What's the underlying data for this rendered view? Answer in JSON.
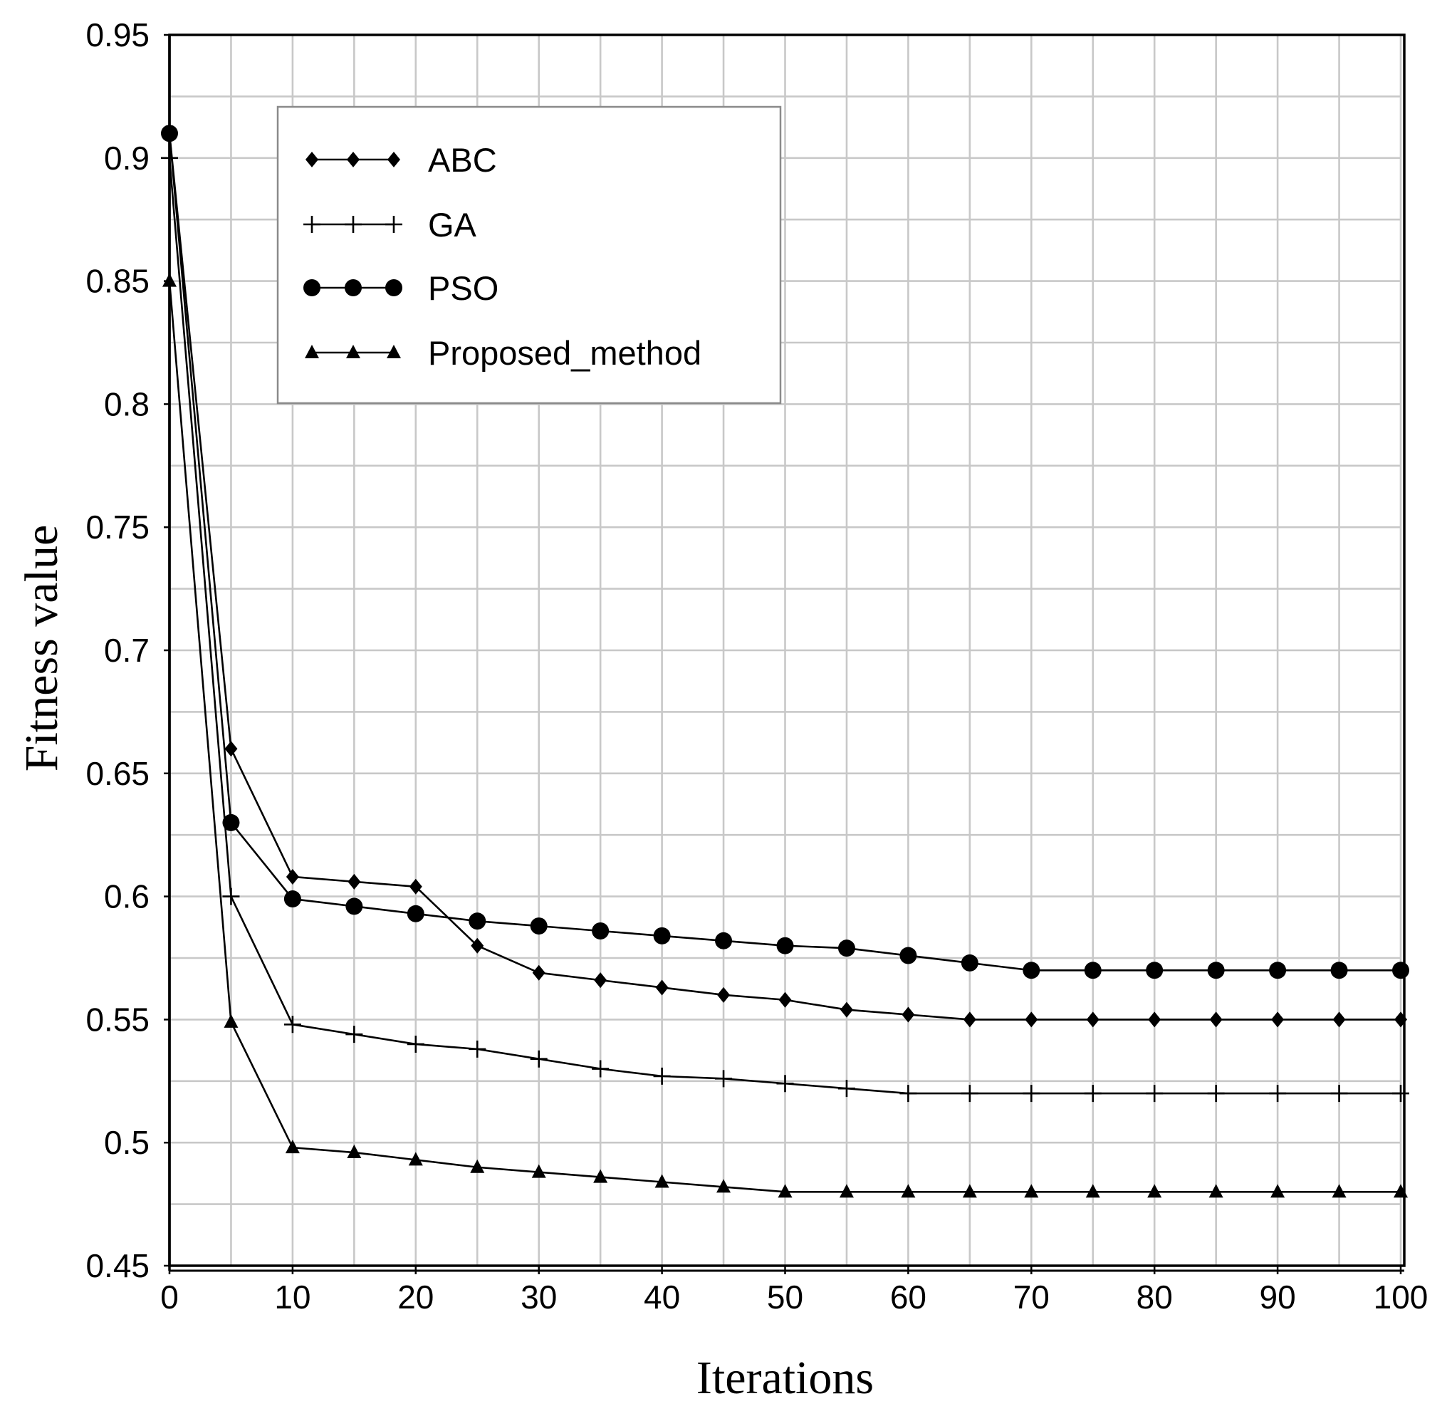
{
  "chart_data": {
    "type": "line",
    "title": "",
    "xlabel": "Iterations",
    "ylabel": "Fitness value",
    "xlim": [
      0,
      100
    ],
    "ylim": [
      0.45,
      0.95
    ],
    "x_ticks": [
      0,
      10,
      20,
      30,
      40,
      50,
      60,
      70,
      80,
      90,
      100
    ],
    "x_tick_labels": [
      "0",
      "10",
      "20",
      "30",
      "40",
      "50",
      "60",
      "70",
      "80",
      "90",
      "100"
    ],
    "y_ticks": [
      0.45,
      0.5,
      0.55,
      0.6,
      0.65,
      0.7,
      0.75,
      0.8,
      0.85,
      0.9,
      0.95
    ],
    "y_tick_labels": [
      "0.45",
      "0.5",
      "0.55",
      "0.6",
      "0.65",
      "0.7",
      "0.75",
      "0.8",
      "0.85",
      "0.9",
      "0.95"
    ],
    "grid": true,
    "x_grid_step": 5,
    "y_grid_step": 0.025,
    "legend": "upper-left",
    "x": [
      0,
      5,
      10,
      15,
      20,
      25,
      30,
      35,
      40,
      45,
      50,
      55,
      60,
      65,
      70,
      75,
      80,
      85,
      90,
      95,
      100
    ],
    "series": [
      {
        "name": "ABC",
        "marker": "diamond",
        "values": [
          0.91,
          0.66,
          0.608,
          0.606,
          0.604,
          0.58,
          0.569,
          0.566,
          0.563,
          0.56,
          0.558,
          0.554,
          0.552,
          0.55,
          0.55,
          0.55,
          0.55,
          0.55,
          0.55,
          0.55,
          0.55
        ]
      },
      {
        "name": "GA",
        "marker": "plus",
        "values": [
          0.9,
          0.6,
          0.548,
          0.544,
          0.54,
          0.538,
          0.534,
          0.53,
          0.527,
          0.526,
          0.524,
          0.522,
          0.52,
          0.52,
          0.52,
          0.52,
          0.52,
          0.52,
          0.52,
          0.52,
          0.52
        ]
      },
      {
        "name": "PSO",
        "marker": "circle",
        "values": [
          0.91,
          0.63,
          0.599,
          0.596,
          0.593,
          0.59,
          0.588,
          0.586,
          0.584,
          0.582,
          0.58,
          0.579,
          0.576,
          0.573,
          0.57,
          0.57,
          0.57,
          0.57,
          0.57,
          0.57,
          0.57
        ]
      },
      {
        "name": "Proposed_method",
        "marker": "triangle",
        "values": [
          0.85,
          0.549,
          0.498,
          0.496,
          0.493,
          0.49,
          0.488,
          0.486,
          0.484,
          0.482,
          0.48,
          0.48,
          0.48,
          0.48,
          0.48,
          0.48,
          0.48,
          0.48,
          0.48,
          0.48,
          0.48
        ]
      }
    ],
    "colors": {
      "series": "#000000",
      "grid": "#c8c8c8",
      "frame": "#000000",
      "legend_border": "#8a8a8a",
      "background": "#ffffff"
    }
  }
}
